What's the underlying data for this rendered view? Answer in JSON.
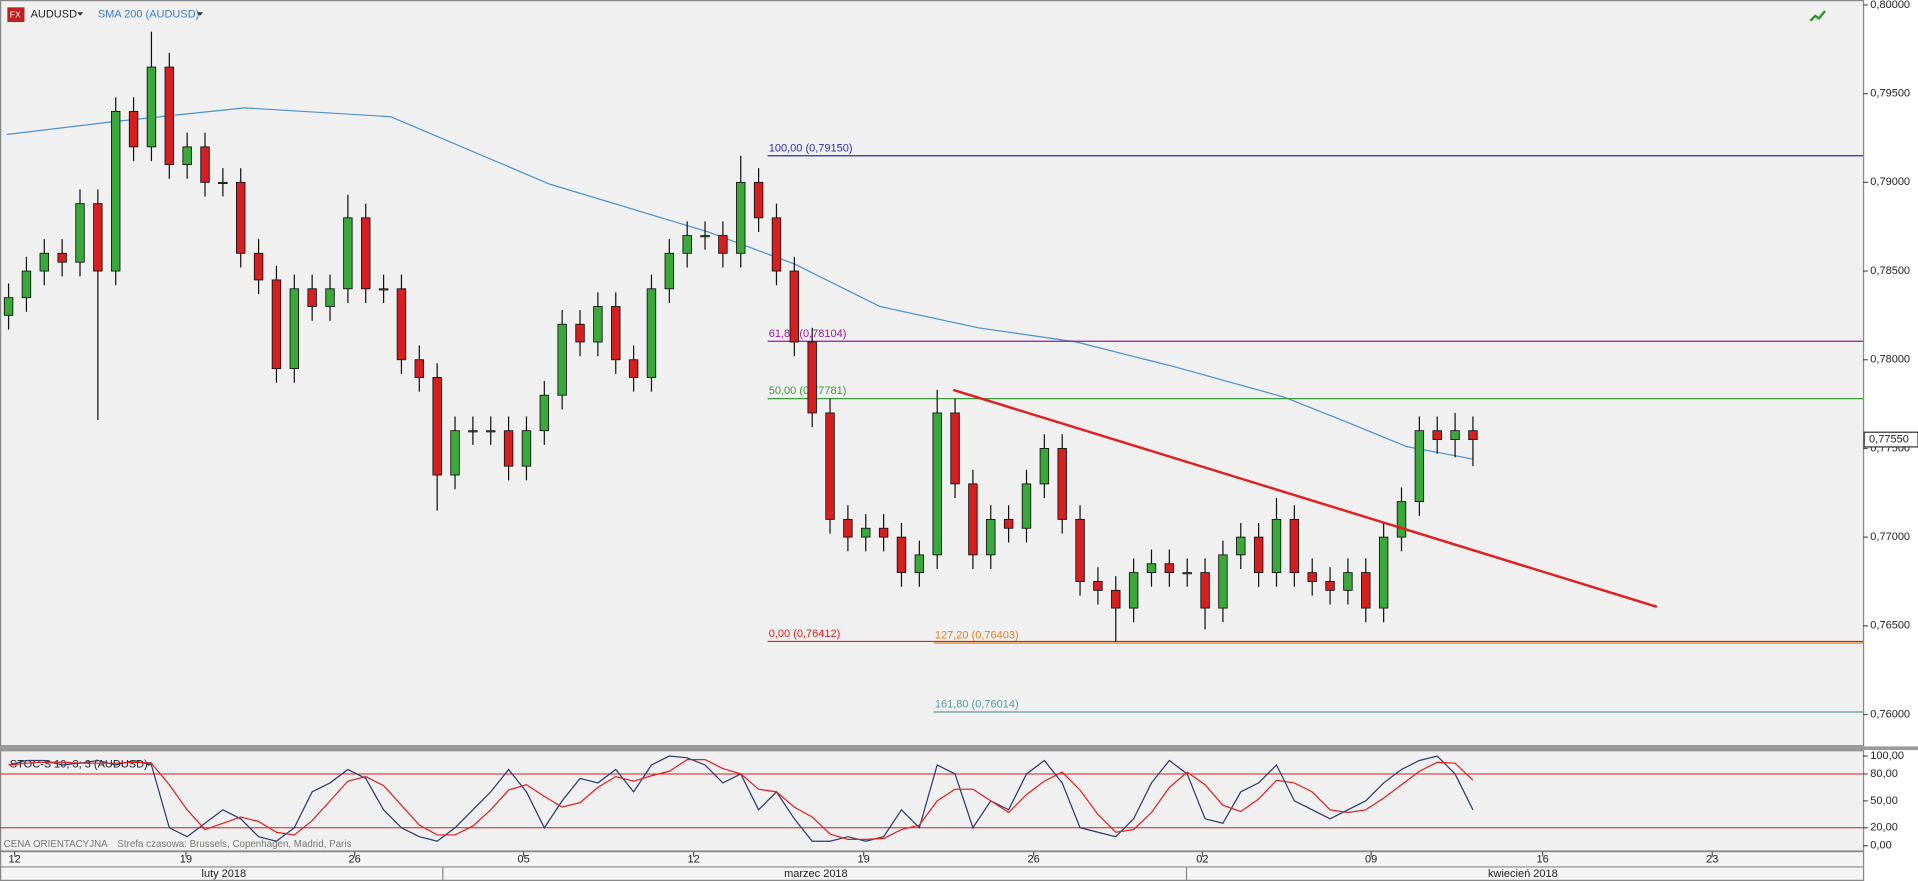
{
  "chart_data": {
    "type": "candlestick",
    "symbol": "AUDUSD",
    "sma_label": "SMA 200 (AUDUSD)",
    "xlim": [
      -0.48,
      103.84
    ],
    "xticks": [
      {
        "value": 0.34,
        "label": "12"
      },
      {
        "value": 9.93,
        "label": "19"
      },
      {
        "value": 19.38,
        "label": "26"
      },
      {
        "value": 28.84,
        "label": "05"
      },
      {
        "value": 38.36,
        "label": "12"
      },
      {
        "value": 47.88,
        "label": "19"
      },
      {
        "value": 57.4,
        "label": "26"
      },
      {
        "value": 66.85,
        "label": "02"
      },
      {
        "value": 76.3,
        "label": "09"
      },
      {
        "value": 85.9,
        "label": "16"
      },
      {
        "value": 95.4,
        "label": "23"
      }
    ],
    "months": [
      "luty 2018",
      "marzec 2018",
      "kwiecień 2018"
    ],
    "ylim": [
      0.75834,
      0.80028
    ],
    "yticks": [
      {
        "value": 0.8,
        "label": "0,80000"
      },
      {
        "value": 0.795,
        "label": "0,79500"
      },
      {
        "value": 0.79,
        "label": "0,79000"
      },
      {
        "value": 0.785,
        "label": "0,78500"
      },
      {
        "value": 0.78,
        "label": "0,78000"
      },
      {
        "value": 0.775,
        "label": "0,77500"
      },
      {
        "value": 0.77,
        "label": "0,77000"
      },
      {
        "value": 0.765,
        "label": "0,76500"
      },
      {
        "value": 0.76,
        "label": "0,76000"
      }
    ],
    "last_price": {
      "value": 0.7755,
      "label": "0,77550"
    },
    "up_color": "#3aa83a",
    "down_color": "#d42020",
    "open": [
      0.7825,
      0.7835,
      0.785,
      0.786,
      0.7855,
      0.7888,
      0.785,
      0.794,
      0.792,
      0.7965,
      0.791,
      0.792,
      0.79,
      0.79,
      0.786,
      0.7845,
      0.7795,
      0.784,
      0.783,
      0.784,
      0.788,
      0.784,
      0.784,
      0.78,
      0.779,
      0.7735,
      0.776,
      0.776,
      0.776,
      0.774,
      0.776,
      0.778,
      0.782,
      0.781,
      0.783,
      0.78,
      0.779,
      0.784,
      0.786,
      0.787,
      0.787,
      0.786,
      0.79,
      0.788,
      0.785,
      0.781,
      0.777,
      0.771,
      0.77,
      0.7705,
      0.77,
      0.768,
      0.769,
      0.777,
      0.773,
      0.769,
      0.771,
      0.7705,
      0.773,
      0.775,
      0.771,
      0.7675,
      0.767,
      0.766,
      0.768,
      0.7685,
      0.768,
      0.768,
      0.766,
      0.769,
      0.77,
      0.768,
      0.771,
      0.768,
      0.7675,
      0.767,
      0.768,
      0.766,
      0.77,
      0.772,
      0.776,
      0.7755,
      0.776
    ],
    "high": [
      0.7843,
      0.7858,
      0.7868,
      0.7868,
      0.7896,
      0.7896,
      0.7948,
      0.7948,
      0.7985,
      0.7973,
      0.7928,
      0.7928,
      0.7908,
      0.7908,
      0.7868,
      0.7853,
      0.7848,
      0.7848,
      0.7848,
      0.7893,
      0.7888,
      0.7848,
      0.7848,
      0.7808,
      0.7798,
      0.7768,
      0.7768,
      0.7768,
      0.7768,
      0.7768,
      0.7788,
      0.7828,
      0.7828,
      0.7838,
      0.7838,
      0.7808,
      0.7848,
      0.7868,
      0.7878,
      0.7878,
      0.7878,
      0.7915,
      0.7908,
      0.7888,
      0.7858,
      0.7818,
      0.7778,
      0.7718,
      0.7713,
      0.7713,
      0.7708,
      0.7698,
      0.7783,
      0.7778,
      0.7738,
      0.7718,
      0.7718,
      0.7738,
      0.7758,
      0.7758,
      0.7718,
      0.7683,
      0.7678,
      0.7688,
      0.7693,
      0.7693,
      0.7688,
      0.7688,
      0.7698,
      0.7708,
      0.7708,
      0.7722,
      0.7718,
      0.7688,
      0.7683,
      0.7688,
      0.7688,
      0.7708,
      0.7728,
      0.7768,
      0.7768,
      0.777,
      0.7768
    ],
    "low": [
      0.7817,
      0.7827,
      0.7842,
      0.7847,
      0.7847,
      0.7766,
      0.7842,
      0.7912,
      0.7912,
      0.7902,
      0.7902,
      0.7892,
      0.7892,
      0.7852,
      0.7837,
      0.7787,
      0.7787,
      0.7822,
      0.7822,
      0.7832,
      0.7832,
      0.7832,
      0.7792,
      0.7782,
      0.7715,
      0.7727,
      0.7752,
      0.7752,
      0.7732,
      0.7732,
      0.7752,
      0.7772,
      0.7802,
      0.7802,
      0.7792,
      0.7782,
      0.7782,
      0.7832,
      0.7852,
      0.7862,
      0.7852,
      0.7852,
      0.7872,
      0.7842,
      0.7802,
      0.7762,
      0.7702,
      0.7692,
      0.7692,
      0.7692,
      0.7672,
      0.7672,
      0.7682,
      0.7722,
      0.7682,
      0.7682,
      0.7697,
      0.7697,
      0.7722,
      0.7702,
      0.7667,
      0.7662,
      0.7641,
      0.7652,
      0.7672,
      0.7672,
      0.7672,
      0.7648,
      0.7652,
      0.7682,
      0.7672,
      0.7672,
      0.7672,
      0.7667,
      0.7662,
      0.7662,
      0.7652,
      0.7652,
      0.7692,
      0.7712,
      0.7747,
      0.7745,
      0.774
    ],
    "close": [
      0.7835,
      0.785,
      0.786,
      0.7855,
      0.7888,
      0.785,
      0.794,
      0.792,
      0.7965,
      0.791,
      0.792,
      0.79,
      0.79,
      0.786,
      0.7845,
      0.7795,
      0.784,
      0.783,
      0.784,
      0.788,
      0.784,
      0.784,
      0.78,
      0.779,
      0.7735,
      0.776,
      0.776,
      0.776,
      0.774,
      0.776,
      0.778,
      0.782,
      0.781,
      0.783,
      0.78,
      0.779,
      0.784,
      0.786,
      0.787,
      0.787,
      0.786,
      0.79,
      0.788,
      0.785,
      0.781,
      0.777,
      0.771,
      0.77,
      0.7705,
      0.77,
      0.768,
      0.769,
      0.777,
      0.773,
      0.769,
      0.771,
      0.7705,
      0.773,
      0.775,
      0.771,
      0.7675,
      0.767,
      0.766,
      0.768,
      0.7685,
      0.768,
      0.768,
      0.766,
      0.769,
      0.77,
      0.768,
      0.771,
      0.768,
      0.7675,
      0.767,
      0.768,
      0.766,
      0.77,
      0.772,
      0.776,
      0.7755,
      0.776,
      0.7755
    ],
    "sma": {
      "color": "#4a90d0",
      "x": [
        -0.1,
        5.7,
        13.2,
        21.4,
        30.3,
        39.2,
        44,
        48.8,
        54.3,
        59.8,
        65.3,
        71.4,
        74.9,
        78.3,
        82
      ],
      "values": [
        0.7927,
        0.7934,
        0.7942,
        0.7937,
        0.7899,
        0.7872,
        0.7854,
        0.783,
        0.7818,
        0.781,
        0.7796,
        0.7779,
        0.7765,
        0.7751,
        0.7744
      ]
    },
    "fib": [
      {
        "value": 0.7915,
        "label": "100,00 (0,79150)",
        "color": "#2a2ab8",
        "start": 42.5
      },
      {
        "value": 0.78104,
        "label": "61,80 (0,78104)",
        "color": "#9a1a9a",
        "start": 42.5
      },
      {
        "value": 0.77781,
        "label": "50,00 (0,77781)",
        "color": "#3a9a3a",
        "start": 42.5
      },
      {
        "value": 0.76412,
        "label": "0,00 (0,76412)",
        "color": "#e02020",
        "start": 42.5
      },
      {
        "value": 0.76403,
        "label": "127,20 (0,76403)",
        "color": "#e08020",
        "start": 51.8
      },
      {
        "value": 0.76014,
        "label": "161,80 (0,76014)",
        "color": "#5a9aa0",
        "start": 51.8
      }
    ],
    "trendline": {
      "color": "#e02020",
      "x": [
        52.9,
        92.3
      ],
      "y": [
        0.7783,
        0.76607
      ]
    },
    "stoch": {
      "title": "STOC-S 10; 3; 3 (AUDUSD)",
      "ylim": [
        -8,
        108
      ],
      "yticks": [
        {
          "value": 100,
          "label": "100,00"
        },
        {
          "value": 80,
          "label": "80,00"
        },
        {
          "value": 50,
          "label": "50,00"
        },
        {
          "value": 20,
          "label": "20,00"
        },
        {
          "value": 0,
          "label": "0,00"
        }
      ],
      "levels": [
        80,
        20
      ],
      "series": [
        {
          "color": "#2a3a6a",
          "values": [
            90,
            95,
            95,
            90,
            92,
            95,
            90,
            95,
            90,
            20,
            10,
            25,
            40,
            30,
            10,
            5,
            20,
            60,
            70,
            85,
            75,
            40,
            20,
            10,
            5,
            20,
            40,
            60,
            85,
            60,
            20,
            50,
            75,
            70,
            85,
            60,
            90,
            100,
            98,
            90,
            70,
            80,
            40,
            60,
            30,
            5,
            5,
            10,
            5,
            10,
            40,
            20,
            90,
            80,
            20,
            50,
            40,
            80,
            95,
            70,
            20,
            15,
            10,
            30,
            70,
            95,
            80,
            30,
            25,
            60,
            70,
            90,
            50,
            40,
            30,
            40,
            50,
            70,
            85,
            95,
            100,
            80,
            40
          ]
        },
        {
          "color": "#e02020",
          "values": [
            90,
            92,
            93,
            93,
            92,
            92,
            92,
            93,
            92,
            68,
            40,
            18,
            25,
            32,
            27,
            15,
            12,
            28,
            50,
            72,
            77,
            67,
            45,
            23,
            12,
            12,
            22,
            40,
            62,
            68,
            55,
            43,
            48,
            65,
            77,
            72,
            78,
            83,
            96,
            96,
            86,
            80,
            63,
            60,
            43,
            32,
            13,
            7,
            7,
            8,
            18,
            23,
            50,
            63,
            63,
            50,
            37,
            57,
            72,
            82,
            62,
            35,
            15,
            18,
            37,
            65,
            82,
            68,
            45,
            38,
            52,
            73,
            70,
            60,
            40,
            37,
            40,
            53,
            68,
            83,
            93,
            92,
            73
          ]
        }
      ]
    },
    "footer": [
      "CENA ORIENTACYJNA",
      "Strefa czasowa: Brussels, Copenhagen, Madrid, Paris"
    ]
  }
}
